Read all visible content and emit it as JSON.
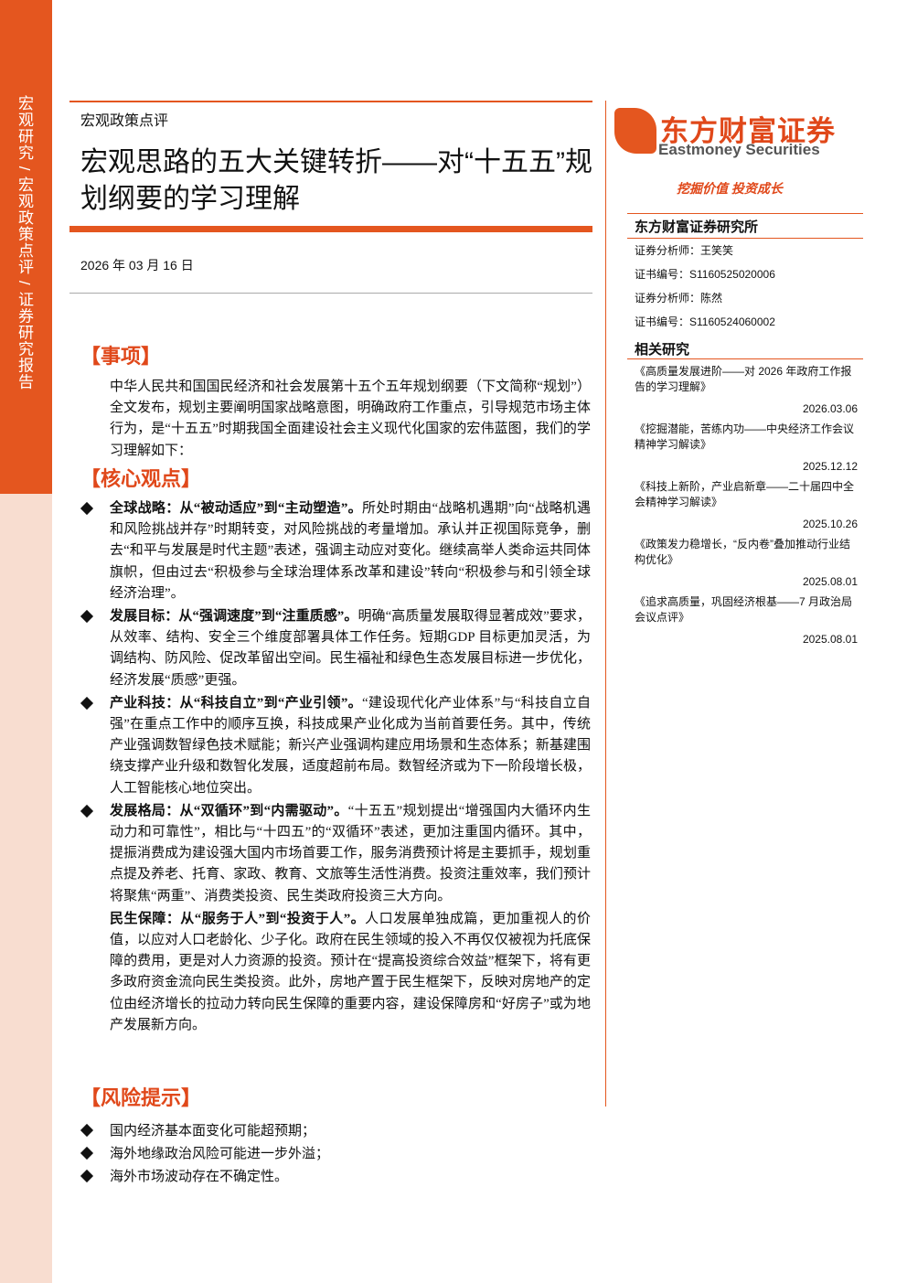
{
  "sidebar": {
    "text": "宏观研究 / 宏观政策点评 / 证券研究报告"
  },
  "header": {
    "category": "宏观政策点评",
    "title": "宏观思路的五大关键转折——对“十五五”规划纲要的学习理解",
    "date": "2026 年 03 月 16 日"
  },
  "sections": [
    {
      "heading": "【事项】",
      "paragraph": "中华人民共和国国民经济和社会发展第十五个五年规划纲要（下文简称“规划”）全文发布，规划主要阐明国家战略意图，明确政府工作重点，引导规范市场主体行为，是“十五五”时期我国全面建设社会主义现代化国家的宏伟蓝图，我们的学习理解如下："
    },
    {
      "heading": "【核心观点】",
      "items": [
        {
          "lead": "全球战略：从“被动适应”到“主动塑造”。",
          "text": "所处时期由“战略机遇期”向“战略机遇和风险挑战并存”时期转变，对风险挑战的考量增加。承认并正视国际竞争，删去“和平与发展是时代主题”表述，强调主动应对变化。继续高举人类命运共同体旗帜，但由过去“积极参与全球治理体系改革和建设”转向“积极参与和引领全球经济治理”。"
        },
        {
          "lead": "发展目标：从“强调速度”到“注重质感”。",
          "text": "明确“高质量发展取得显著成效”要求，从效率、结构、安全三个维度部署具体工作任务。短期GDP 目标更加灵活，为调结构、防风险、促改革留出空间。民生福祉和绿色生态发展目标进一步优化，经济发展“质感”更强。"
        },
        {
          "lead": "产业科技：从“科技自立”到“产业引领”。",
          "text": "“建设现代化产业体系”与“科技自立自强”在重点工作中的顺序互换，科技成果产业化成为当前首要任务。其中，传统产业强调数智绿色技术赋能；新兴产业强调构建应用场景和生态体系；新基建围绕支撑产业升级和数智化发展，适度超前布局。数智经济或为下一阶段增长极，人工智能核心地位突出。"
        },
        {
          "lead": "发展格局：从“双循环”到“内需驱动”。",
          "text": "“十五五”规划提出“增强国内大循环内生动力和可靠性”，相比与“十四五”的“双循环”表述，更加注重国内循环。其中，提振消费成为建设强大国内市场首要工作，服务消费预计将是主要抓手，规划重点提及养老、托育、家政、教育、文旅等生活性消费。投资注重效率，我们预计将聚焦“两重”、消费类投资、民生类政府投资三大方向。"
        },
        {
          "lead": "民生保障：从“服务于人”到“投资于人”。",
          "text": "人口发展单独成篇，更加重视人的价值，以应对人口老龄化、少子化。政府在民生领域的投入不再仅仅被视为托底保障的费用，更是对人力资源的投资。预计在“提高投资综合效益”框架下，将有更多政府资金流向民生类投资。此外，房地产置于民生框架下，反映对房地产的定位由经济增长的拉动力转向民生保障的重要内容，建设保障房和“好房子”或为地产发展新方向。"
        }
      ]
    },
    {
      "heading": "【风险提示】",
      "items": [
        "国内经济基本面变化可能超预期；",
        "海外地缘政治风险可能进一步外溢；",
        "海外市场波动存在不确定性。"
      ]
    }
  ],
  "side": {
    "logo": "东方财富证券",
    "logo_en": "Eastmoney Securities",
    "slogan": "挖掘价值 投资成长",
    "institute": "东方财富证券研究所",
    "analysts": [
      "证券分析师：王笑笑",
      "证书编号：S1160525020006",
      "证券分析师：陈然",
      "证书编号：S1160524060002"
    ],
    "related_title": "相关研究",
    "related": [
      {
        "title": "《高质量发展进阶——对 2026 年政府工作报告的学习理解》",
        "date": "2026.03.06"
      },
      {
        "title": "《挖掘潜能，苦练内功——中央经济工作会议精神学习解读》",
        "date": "2025.12.12"
      },
      {
        "title": "《科技上新阶，产业启新章——二十届四中全会精神学习解读》",
        "date": "2025.10.26"
      },
      {
        "title": "《政策发力稳增长，“反内卷”叠加推动行业结构优化》",
        "date": "2025.08.01"
      },
      {
        "title": "《追求高质量，巩固经济根基——7 月政治局会议点评》",
        "date": "2025.08.01"
      }
    ]
  }
}
